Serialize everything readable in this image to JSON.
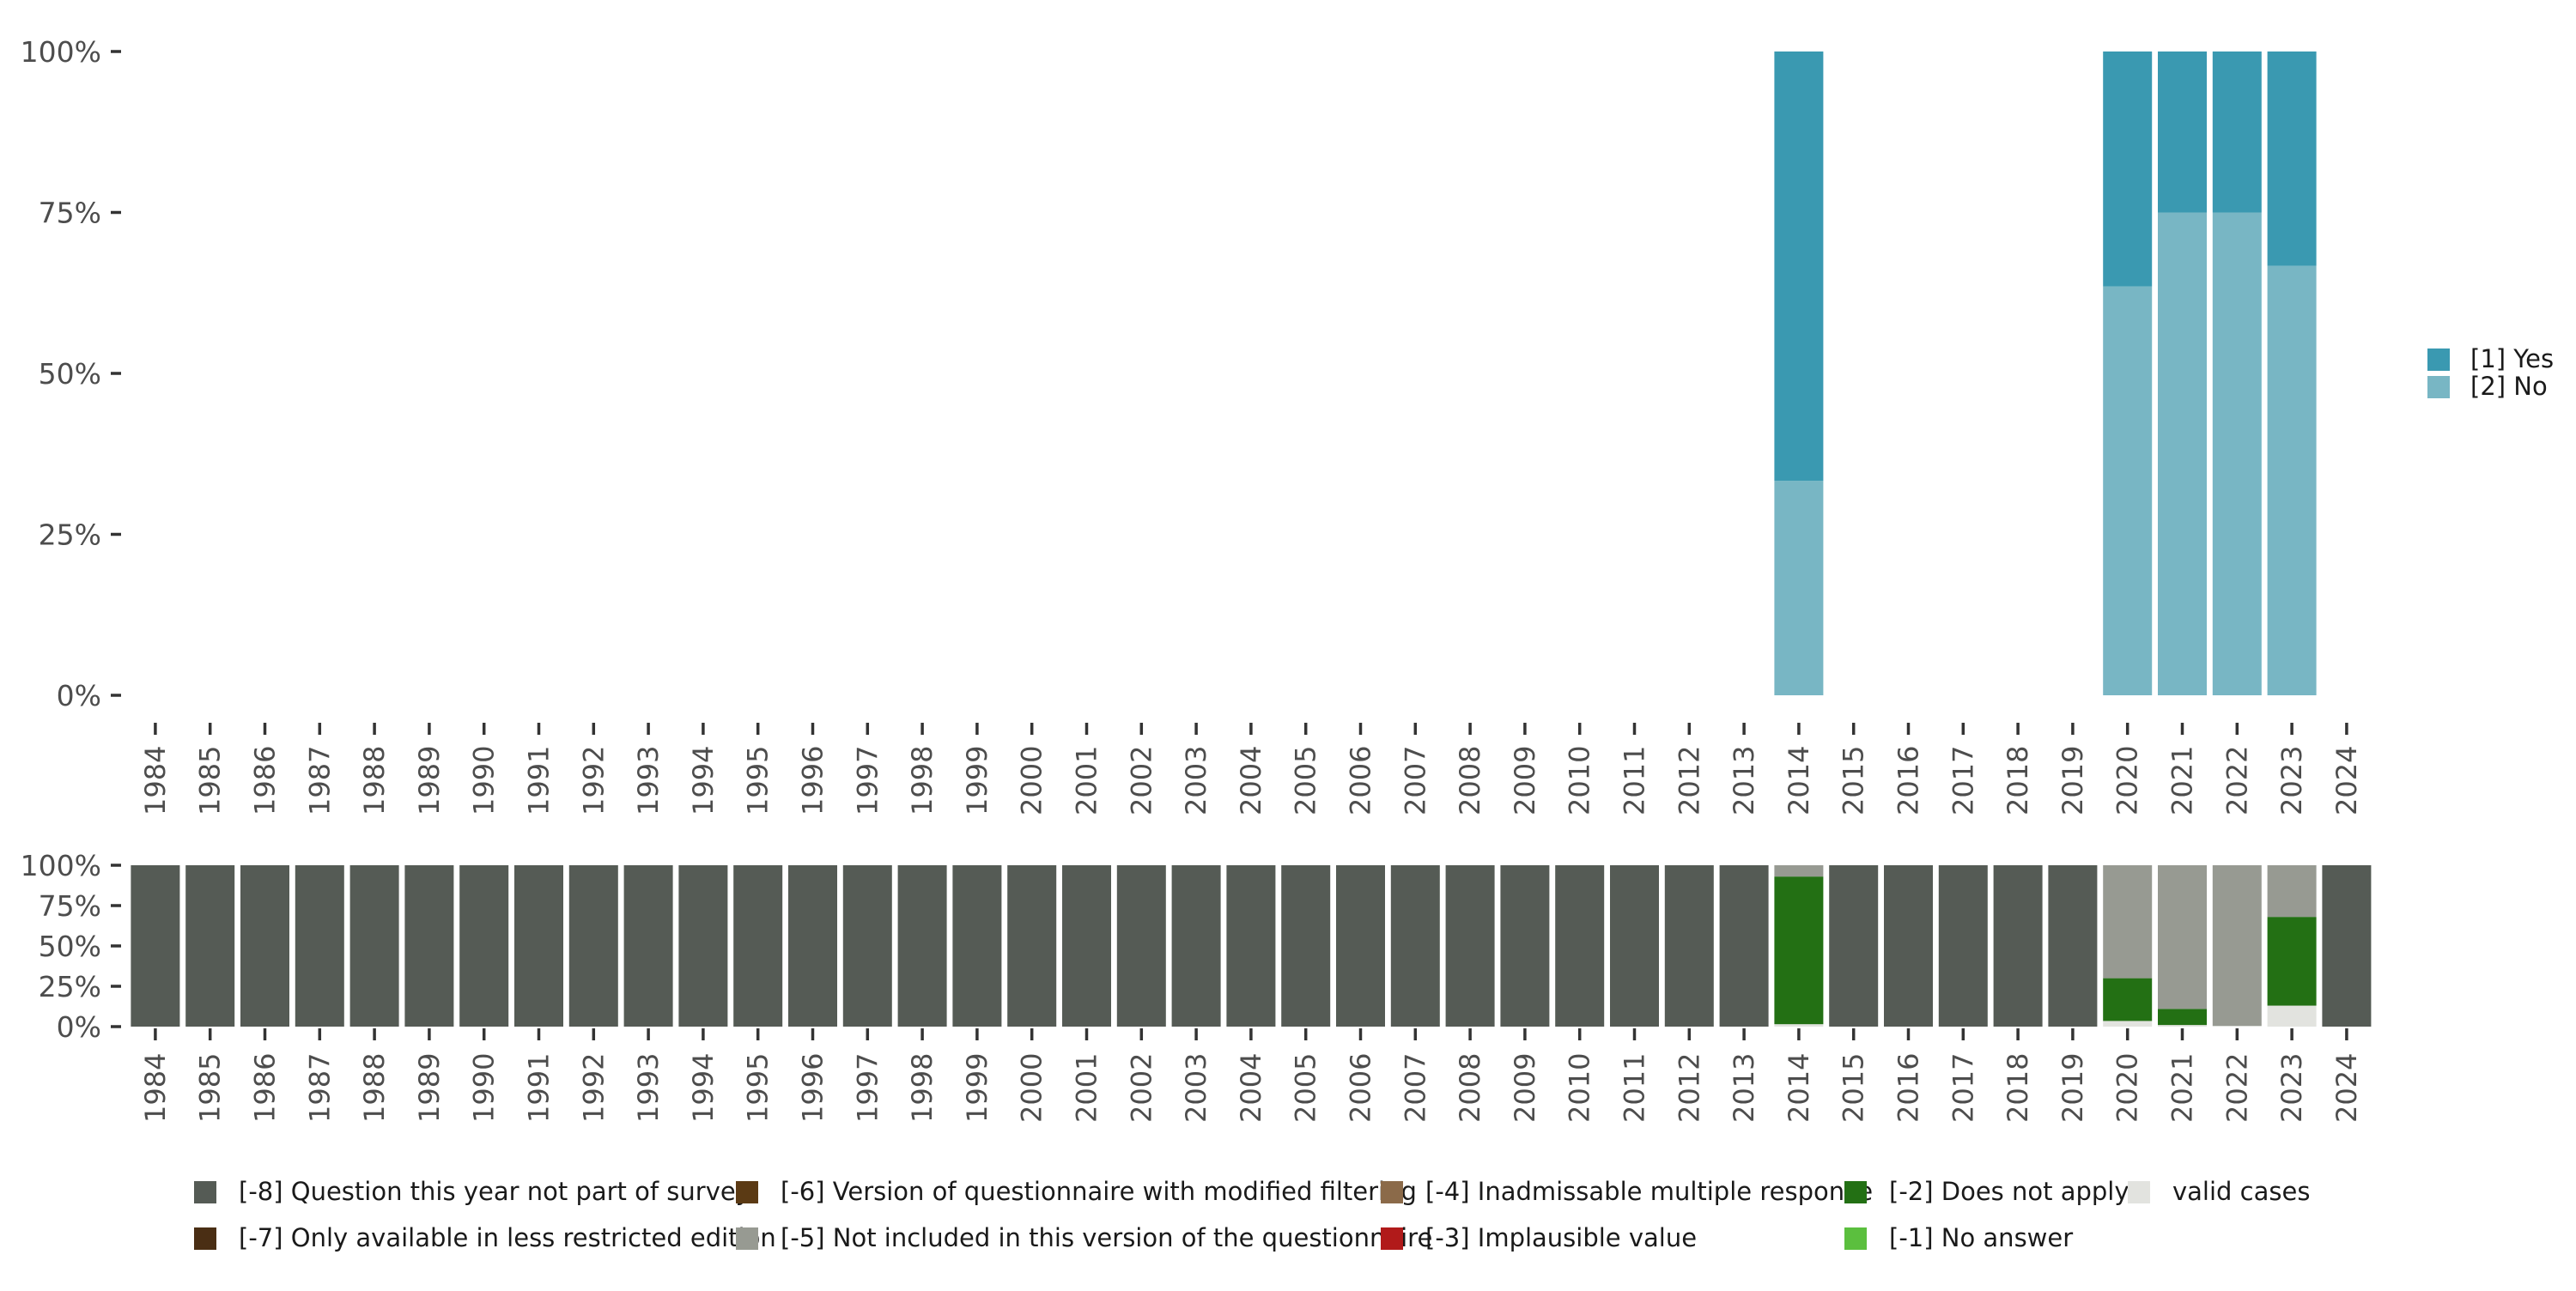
{
  "chart_data": [
    {
      "name": "top",
      "type": "bar",
      "stacked": true,
      "title": "",
      "xlabel": "",
      "ylabel": "",
      "ylim": [
        0,
        1
      ],
      "y_ticks": [
        "0%",
        "25%",
        "50%",
        "75%",
        "100%"
      ],
      "categories": [
        "1984",
        "1985",
        "1986",
        "1987",
        "1988",
        "1989",
        "1990",
        "1991",
        "1992",
        "1993",
        "1994",
        "1995",
        "1996",
        "1997",
        "1998",
        "1999",
        "2000",
        "2001",
        "2002",
        "2003",
        "2004",
        "2005",
        "2006",
        "2007",
        "2008",
        "2009",
        "2010",
        "2011",
        "2012",
        "2013",
        "2014",
        "2015",
        "2016",
        "2017",
        "2018",
        "2019",
        "2020",
        "2021",
        "2022",
        "2023",
        "2024"
      ],
      "series": [
        {
          "name": "[2] No",
          "color": "#78b6c4",
          "values": {
            "2014": 0.333,
            "2020": 0.635,
            "2021": 0.75,
            "2022": 0.75,
            "2023": 0.667
          }
        },
        {
          "name": "[1] Yes",
          "color": "#3a99b1",
          "values": {
            "2014": 0.667,
            "2020": 0.365,
            "2021": 0.25,
            "2022": 0.25,
            "2023": 0.333
          }
        }
      ],
      "legend": [
        {
          "label": "[1] Yes",
          "color": "#3a99b1"
        },
        {
          "label": "[2] No",
          "color": "#78b6c4"
        }
      ],
      "legend_position": "right"
    },
    {
      "name": "bottom",
      "type": "bar",
      "stacked": true,
      "ylim": [
        0,
        1
      ],
      "y_ticks": [
        "0%",
        "25%",
        "50%",
        "75%",
        "100%"
      ],
      "categories": [
        "1984",
        "1985",
        "1986",
        "1987",
        "1988",
        "1989",
        "1990",
        "1991",
        "1992",
        "1993",
        "1994",
        "1995",
        "1996",
        "1997",
        "1998",
        "1999",
        "2000",
        "2001",
        "2002",
        "2003",
        "2004",
        "2005",
        "2006",
        "2007",
        "2008",
        "2009",
        "2010",
        "2011",
        "2012",
        "2013",
        "2014",
        "2015",
        "2016",
        "2017",
        "2018",
        "2019",
        "2020",
        "2021",
        "2022",
        "2023",
        "2024"
      ],
      "default_full_series": "[-8] Question this year not part of survey",
      "series": [
        {
          "name": "valid cases",
          "color": "#e2e3df",
          "values": {
            "2014": 0.015,
            "2020": 0.035,
            "2021": 0.01,
            "2022": 0.005,
            "2023": 0.13
          }
        },
        {
          "name": "[-2] Does not apply",
          "color": "#237014",
          "values": {
            "2014": 0.915,
            "2020": 0.265,
            "2021": 0.1,
            "2022": 0.0,
            "2023": 0.55
          }
        },
        {
          "name": "[-5] Not included in this version of the questionnaire",
          "color": "#979a92",
          "values": {
            "2014": 0.07,
            "2020": 0.7,
            "2021": 0.89,
            "2022": 0.995,
            "2023": 0.32
          }
        },
        {
          "name": "[-8] Question this year not part of survey",
          "color": "#555b55",
          "values": {}
        }
      ],
      "legend_position": "bottom"
    }
  ],
  "bottom_legend": {
    "row1": [
      {
        "label": "[-8] Question this year not part of survey",
        "color": "#555b55"
      },
      {
        "label": "[-6] Version of questionnaire with modified filtering",
        "color": "#5b3a14"
      },
      {
        "label": "[-4] Inadmissable multiple response",
        "color": "#8b6a49"
      },
      {
        "label": "[-2] Does not apply",
        "color": "#237014"
      },
      {
        "label": "valid cases",
        "color": "#e2e3df"
      }
    ],
    "row2": [
      {
        "label": "[-7] Only available in less restricted edition",
        "color": "#4a2e14"
      },
      {
        "label": "[-5] Not included in this version of the questionnaire",
        "color": "#979a92"
      },
      {
        "label": "[-3] Implausible value",
        "color": "#b11a1a"
      },
      {
        "label": "[-1] No answer",
        "color": "#5bbf3e"
      }
    ]
  }
}
